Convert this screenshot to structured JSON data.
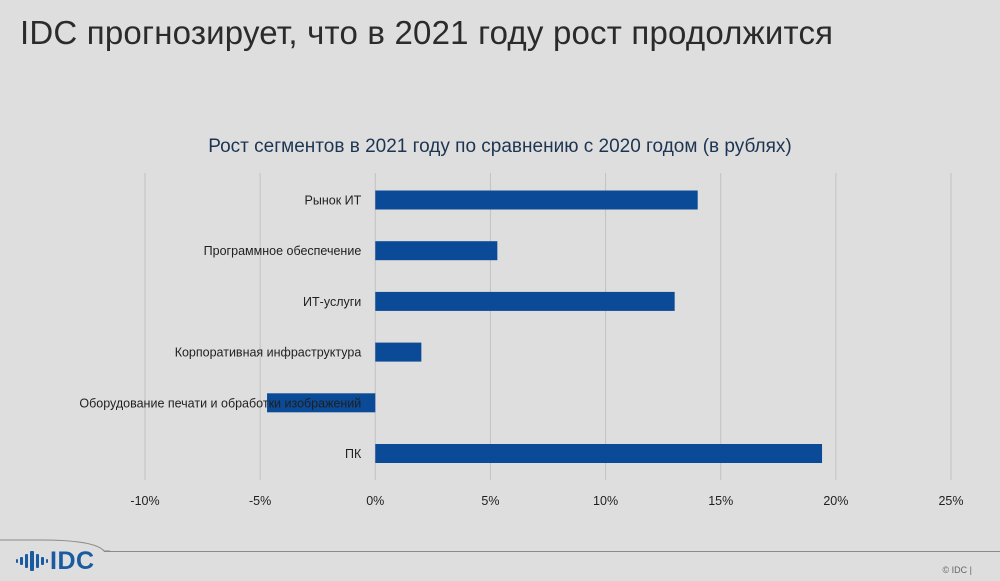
{
  "slide": {
    "title": "IDC прогнозирует, что в 2021 году рост продолжится",
    "copyright": "© IDC |",
    "logo_text": "IDC"
  },
  "colors": {
    "bar": "#0b4a96",
    "grid": "#c2c2c2",
    "logo": "#1a5aa0"
  },
  "chart_data": {
    "type": "bar",
    "orientation": "horizontal",
    "title": "Рост сегментов в 2021 году по сравнению с 2020 годом (в рублях)",
    "categories": [
      "Рынок ИТ",
      "Программное обеспечение",
      "ИТ-услуги",
      "Корпоративная инфраструктура",
      "Оборудование печати и обработки изображений",
      "ПК"
    ],
    "values": [
      14.0,
      5.3,
      13.0,
      2.0,
      -4.7,
      19.4
    ],
    "xlim": [
      -10,
      25
    ],
    "x_ticks": [
      -10,
      -5,
      0,
      5,
      10,
      15,
      20,
      25
    ],
    "x_tick_labels": [
      "-10%",
      "-5%",
      "0%",
      "5%",
      "10%",
      "15%",
      "20%",
      "25%"
    ],
    "grid": true,
    "legend": false
  }
}
